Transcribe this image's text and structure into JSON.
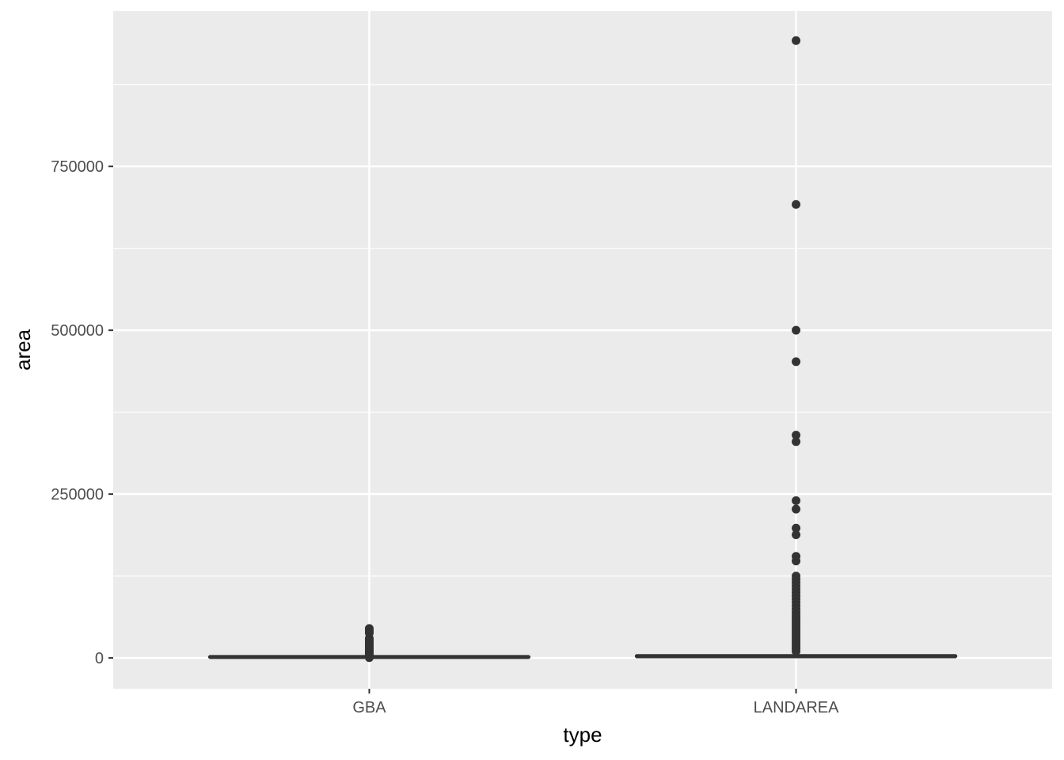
{
  "chart_data": {
    "type": "box",
    "xlabel": "type",
    "ylabel": "area",
    "categories": [
      "GBA",
      "LANDAREA"
    ],
    "y_ticks": [
      0,
      250000,
      500000,
      750000
    ],
    "y_tick_labels": [
      "0",
      "250000",
      "500000",
      "750000"
    ],
    "ylim": [
      -47000,
      987000
    ],
    "grid": true,
    "series": [
      {
        "category": "GBA",
        "q1": 1000,
        "median": 1400,
        "q3": 2000,
        "whisker_low": 0,
        "whisker_high": 3500,
        "outliers": [
          45000,
          42000,
          40000,
          38000,
          30000,
          28000,
          26000,
          24000,
          22000,
          20000,
          18000,
          16000,
          14000,
          12000,
          10000,
          8500,
          7000,
          5500,
          4000,
          2000,
          500
        ]
      },
      {
        "category": "LANDAREA",
        "q1": 1500,
        "median": 2500,
        "q3": 4000,
        "whisker_low": 0,
        "whisker_high": 8000,
        "outliers": [
          942000,
          692000,
          500000,
          452000,
          340000,
          330000,
          240000,
          227000,
          198000,
          188000,
          155000,
          148000,
          125000,
          120000,
          115000,
          110000,
          105000,
          100000,
          95000,
          90000,
          85000,
          80000,
          75000,
          70000,
          66000,
          62000,
          58000,
          54000,
          50000,
          46000,
          42000,
          38000,
          34000,
          30000,
          26000,
          22000,
          18000,
          14000,
          10000
        ]
      }
    ],
    "colors": {
      "panel": "#ebebeb",
      "grid": "#ffffff",
      "box": "#333333",
      "tick": "#333333"
    }
  }
}
